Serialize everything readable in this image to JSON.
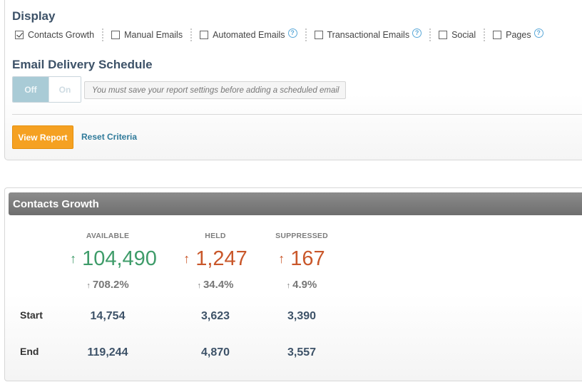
{
  "display": {
    "title": "Display",
    "options": [
      {
        "label": "Contacts Growth",
        "checked": true
      },
      {
        "label": "Manual Emails",
        "checked": false
      },
      {
        "label": "Automated Emails",
        "checked": false,
        "help": "?"
      },
      {
        "label": "Transactional Emails",
        "checked": false,
        "help": "?"
      },
      {
        "label": "Social",
        "checked": false
      },
      {
        "label": "Pages",
        "checked": false,
        "help": "?"
      }
    ]
  },
  "schedule": {
    "title": "Email Delivery Schedule",
    "toggle_off": "Off",
    "toggle_on": "On",
    "note": "You must save your report settings before adding a scheduled email"
  },
  "actions": {
    "view_report": "View Report",
    "reset_criteria": "Reset Criteria"
  },
  "growth": {
    "title": "Contacts Growth",
    "columns": [
      {
        "header": "AVAILABLE",
        "value": "104,490",
        "pct": "708.2%",
        "arrow": "↑",
        "tone": "green",
        "start": "14,754",
        "end": "119,244"
      },
      {
        "header": "HELD",
        "value": "1,247",
        "pct": "34.4%",
        "arrow": "↑",
        "tone": "red",
        "start": "3,623",
        "end": "4,870"
      },
      {
        "header": "SUPPRESSED",
        "value": "167",
        "pct": "4.9%",
        "arrow": "↑",
        "tone": "red",
        "start": "3,390",
        "end": "3,557"
      }
    ],
    "rows": {
      "start": "Start",
      "end": "End"
    }
  }
}
